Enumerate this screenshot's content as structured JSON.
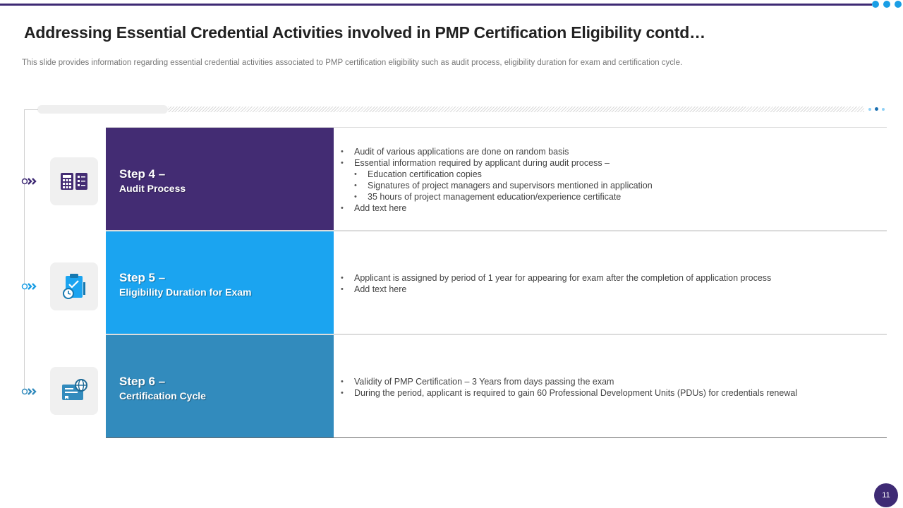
{
  "slide": {
    "title": "Addressing Essential Credential Activities involved in PMP Certification Eligibility contd…",
    "subtitle": "This slide provides information regarding essential credential activities associated to PMP certification eligibility such as audit process, eligibility duration for exam and certification cycle.",
    "page_number": "11"
  },
  "colors": {
    "primary": "#3e2a74",
    "accent": "#1a9ee5",
    "step4_bg": "#432c73",
    "step5_bg": "#1ba4f0",
    "step6_bg": "#328bbd"
  },
  "steps": [
    {
      "number": "Step 4 –",
      "name": "Audit Process",
      "icon": "calculator-checklist-icon",
      "bullets": [
        {
          "text": "Audit of various  applications are done on random basis",
          "level": 1
        },
        {
          "text": "Essential information  required  by applicant during  audit process –",
          "level": 1
        },
        {
          "text": "Education certification copies",
          "level": 2
        },
        {
          "text": "Signatures of project managers and supervisors  mentioned  in application",
          "level": 2
        },
        {
          "text": "35 hours of project management  education/experience  certificate",
          "level": 2
        },
        {
          "text": "Add text here",
          "level": 1
        }
      ]
    },
    {
      "number": "Step 5 –",
      "name": "Eligibility Duration for Exam",
      "icon": "clipboard-clock-icon",
      "bullets": [
        {
          "text": "Applicant is assigned by period of 1 year for  appearing for exam after  the completion of application process",
          "level": 1
        },
        {
          "text": "Add text here",
          "level": 1
        }
      ]
    },
    {
      "number": "Step 6 –",
      "name": "Certification Cycle",
      "icon": "certificate-globe-icon",
      "bullets": [
        {
          "text": "Validity of PMP Certification  – 3 Years from days passing the exam",
          "level": 1
        },
        {
          "text": "During  the period,  applicant is required  to gain  60 Professional  Development  Units (PDUs) for credentials renewal",
          "level": 1
        }
      ]
    }
  ]
}
